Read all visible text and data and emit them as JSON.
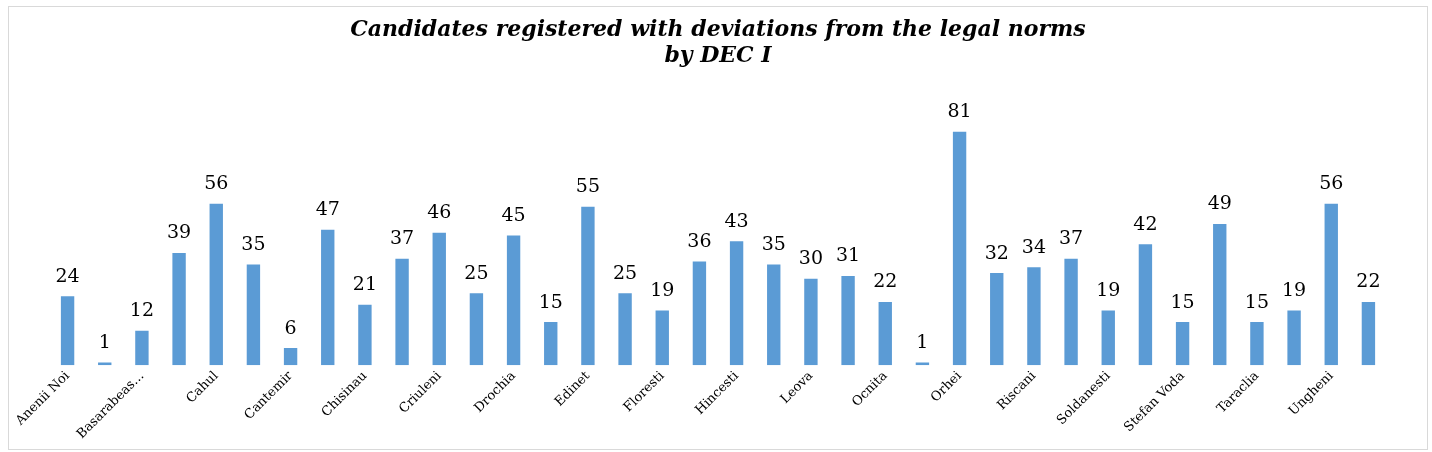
{
  "chart_data": {
    "type": "bar",
    "title": "Candidates registered with deviations from the legal norms\nby DEC I",
    "categories": [
      "Anenii Noi",
      null,
      "Basarabeas...",
      null,
      "Cahul",
      null,
      "Cantemir",
      null,
      "Chisinau",
      null,
      "Criuleni",
      null,
      "Drochia",
      null,
      "Edinet",
      null,
      "Floresti",
      null,
      "Hincesti",
      null,
      "Leova",
      null,
      "Ocnita",
      null,
      "Orhei",
      null,
      "Riscani",
      null,
      "Soldanesti",
      null,
      "Stefan Voda",
      null,
      "Taraclia",
      null,
      "Ungheni",
      null
    ],
    "values": [
      24,
      1,
      12,
      39,
      56,
      35,
      6,
      47,
      21,
      37,
      46,
      25,
      45,
      15,
      55,
      25,
      19,
      36,
      43,
      35,
      30,
      31,
      22,
      1,
      81,
      32,
      34,
      37,
      19,
      42,
      15,
      49,
      15,
      19,
      56,
      22
    ],
    "color": "#5b9bd5",
    "data_labels": true,
    "grid": false,
    "legend": false
  }
}
